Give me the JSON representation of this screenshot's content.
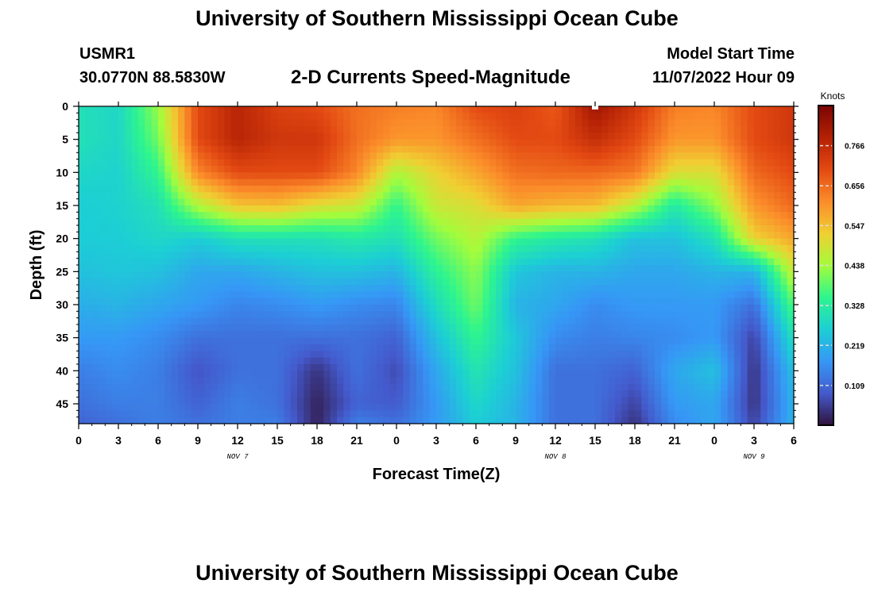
{
  "header": {
    "title": "University of Southern Mississippi Ocean Cube",
    "station_id": "USMR1",
    "coordinates": "30.0770N  88.5830W",
    "subtitle": "2-D Currents Speed-Magnitude",
    "model_start_label": "Model Start Time",
    "model_start_value": "11/07/2022 Hour 09"
  },
  "footer": {
    "title": "University of Southern Mississippi Ocean Cube"
  },
  "chart_data": {
    "type": "heatmap",
    "title": "2-D Currents Speed-Magnitude",
    "xlabel": "Forecast Time(Z)",
    "ylabel": "Depth (ft)",
    "x_ticks": [
      "0",
      "3",
      "6",
      "9",
      "12",
      "15",
      "18",
      "21",
      "0",
      "3",
      "6",
      "9",
      "12",
      "15",
      "18",
      "21",
      "0",
      "3",
      "6"
    ],
    "x_day_labels": [
      {
        "label": "NOV 7",
        "hour_index": 12
      },
      {
        "label": "NOV 8",
        "hour_index": 36
      },
      {
        "label": "NOV 9",
        "hour_index": 51
      }
    ],
    "x_range_hours": [
      0,
      54
    ],
    "y_ticks": [
      "0",
      "5",
      "10",
      "15",
      "20",
      "25",
      "30",
      "35",
      "40",
      "45"
    ],
    "y_range_ft": [
      0,
      48
    ],
    "y_inverted": true,
    "colorbar": {
      "unit": "Knots",
      "tick_labels": [
        "0.766",
        "0.656",
        "0.547",
        "0.438",
        "0.328",
        "0.219",
        "0.109"
      ],
      "tick_values": [
        0.766,
        0.656,
        0.547,
        0.438,
        0.328,
        0.219,
        0.109
      ],
      "range": [
        0.0,
        0.876
      ],
      "colormap": "turbo"
    },
    "grid": {
      "hours": [
        0,
        3,
        6,
        9,
        12,
        15,
        18,
        21,
        24,
        27,
        30,
        33,
        36,
        39,
        42,
        45,
        48,
        51,
        54
      ],
      "depths_ft": [
        0,
        5,
        10,
        15,
        20,
        25,
        30,
        35,
        40,
        45,
        48
      ],
      "speed_knots": [
        [
          0.3,
          0.28,
          0.43,
          0.7,
          0.78,
          0.72,
          0.7,
          0.65,
          0.63,
          0.62,
          0.7,
          0.72,
          0.68,
          0.82,
          0.74,
          0.63,
          0.62,
          0.7,
          0.74
        ],
        [
          0.3,
          0.28,
          0.4,
          0.7,
          0.78,
          0.74,
          0.74,
          0.65,
          0.6,
          0.6,
          0.65,
          0.7,
          0.7,
          0.76,
          0.7,
          0.6,
          0.6,
          0.7,
          0.74
        ],
        [
          0.28,
          0.27,
          0.35,
          0.62,
          0.7,
          0.7,
          0.7,
          0.62,
          0.45,
          0.52,
          0.58,
          0.65,
          0.66,
          0.66,
          0.64,
          0.5,
          0.5,
          0.66,
          0.7
        ],
        [
          0.26,
          0.27,
          0.3,
          0.45,
          0.54,
          0.55,
          0.5,
          0.48,
          0.35,
          0.48,
          0.5,
          0.58,
          0.56,
          0.55,
          0.46,
          0.32,
          0.42,
          0.6,
          0.66
        ],
        [
          0.26,
          0.26,
          0.28,
          0.26,
          0.3,
          0.3,
          0.3,
          0.32,
          0.3,
          0.4,
          0.46,
          0.35,
          0.32,
          0.3,
          0.24,
          0.24,
          0.3,
          0.52,
          0.58
        ],
        [
          0.24,
          0.25,
          0.24,
          0.2,
          0.2,
          0.22,
          0.24,
          0.24,
          0.22,
          0.34,
          0.42,
          0.25,
          0.22,
          0.22,
          0.2,
          0.2,
          0.22,
          0.22,
          0.48
        ],
        [
          0.21,
          0.22,
          0.2,
          0.18,
          0.15,
          0.16,
          0.18,
          0.16,
          0.15,
          0.29,
          0.4,
          0.22,
          0.2,
          0.16,
          0.18,
          0.18,
          0.18,
          0.12,
          0.38
        ],
        [
          0.18,
          0.18,
          0.16,
          0.12,
          0.12,
          0.12,
          0.12,
          0.12,
          0.1,
          0.24,
          0.35,
          0.25,
          0.16,
          0.14,
          0.15,
          0.16,
          0.18,
          0.06,
          0.3
        ],
        [
          0.14,
          0.16,
          0.14,
          0.08,
          0.12,
          0.12,
          0.04,
          0.12,
          0.07,
          0.2,
          0.31,
          0.24,
          0.12,
          0.12,
          0.1,
          0.2,
          0.24,
          0.04,
          0.24
        ],
        [
          0.12,
          0.14,
          0.14,
          0.1,
          0.14,
          0.12,
          0.02,
          0.1,
          0.09,
          0.18,
          0.28,
          0.22,
          0.12,
          0.12,
          0.06,
          0.18,
          0.2,
          0.04,
          0.22
        ],
        [
          0.1,
          0.12,
          0.14,
          0.12,
          0.14,
          0.14,
          0.02,
          0.14,
          0.12,
          0.18,
          0.26,
          0.22,
          0.12,
          0.12,
          0.04,
          0.16,
          0.2,
          0.06,
          0.22
        ]
      ]
    }
  }
}
